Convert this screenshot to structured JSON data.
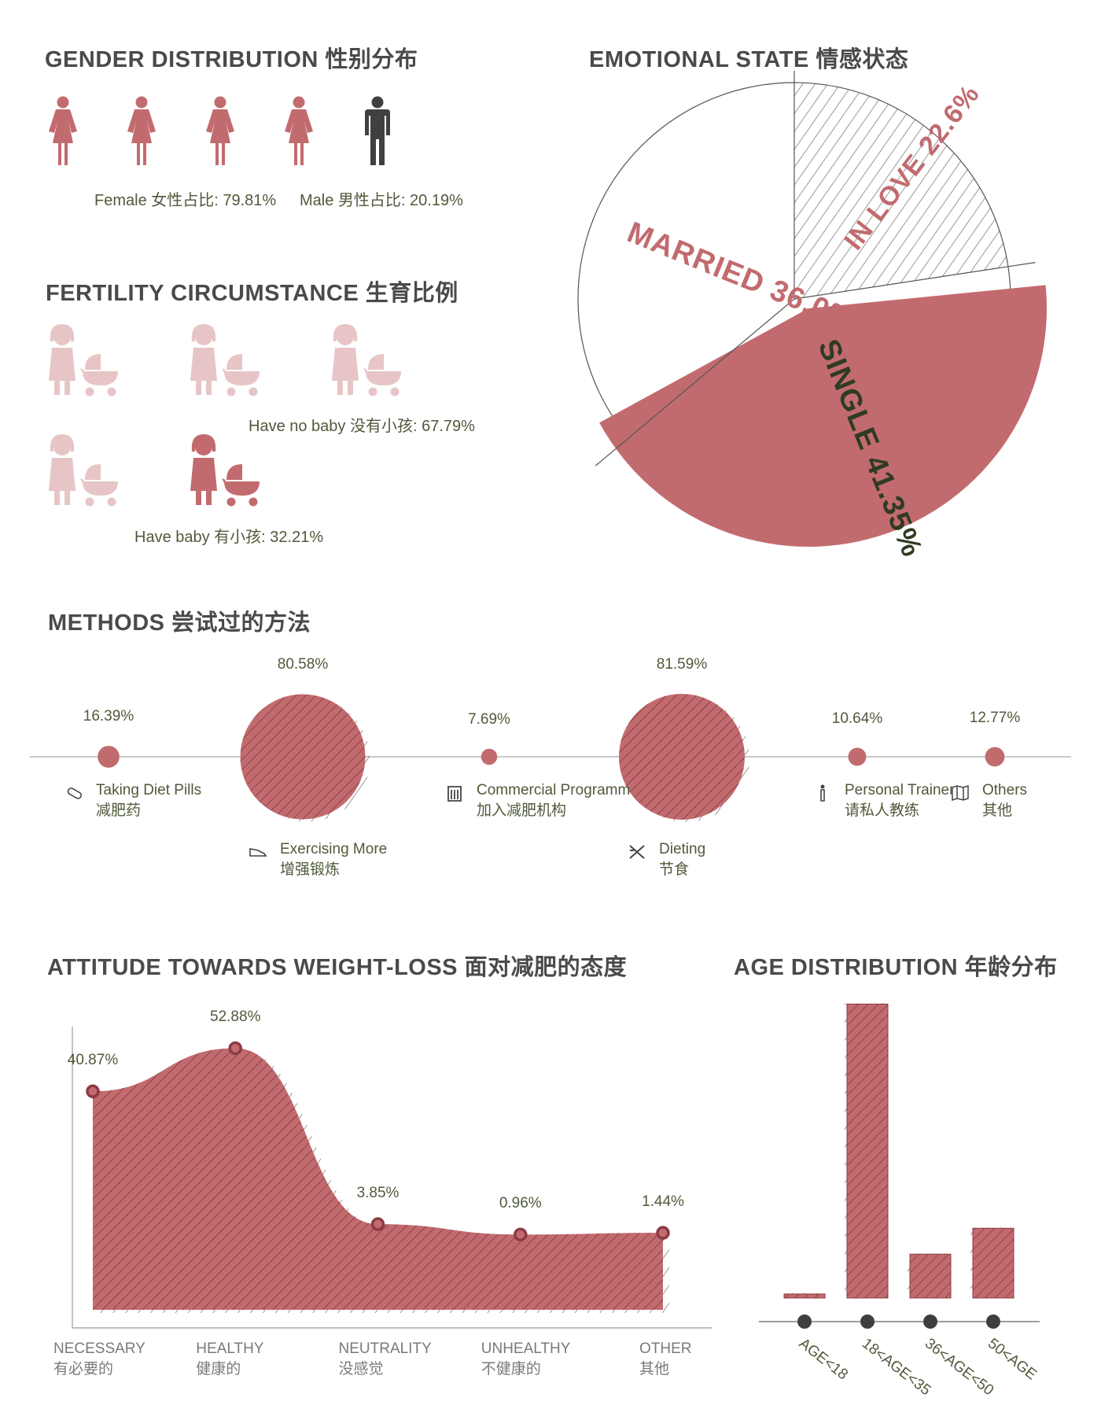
{
  "colors": {
    "rose": "#c26b6f",
    "rose_dark": "#8e3a44",
    "pale_rose": "#e7c5c6",
    "male_gray": "#404040",
    "olive_text": "#4f5a3a",
    "single_text": "#2f3b22"
  },
  "gender": {
    "title": "GENDER DISTRIBUTION 性别分布",
    "female_label": "Female 女性占比: 79.81%",
    "male_label": "Male 男性占比: 20.19%",
    "icons": [
      "female-icon",
      "female-icon",
      "female-icon",
      "female-icon",
      "male-icon"
    ]
  },
  "fertility": {
    "title": "FERTILITY CIRCUMSTANCE 生育比例",
    "no_baby_label": "Have no baby 没有小孩: 67.79%",
    "baby_label": "Have baby 有小孩: 32.21%",
    "icons": [
      "mother-stroller-icon"
    ]
  },
  "emotional": {
    "title": "EMOTIONAL STATE 情感状态",
    "chart_data": {
      "type": "pie",
      "slices": [
        {
          "label": "IN LOVE 22.6%",
          "value": 22.6
        },
        {
          "label": "MARRIED 36.0%",
          "value": 36.0
        },
        {
          "label": "SINGLE 41.35%",
          "value": 41.35
        }
      ]
    }
  },
  "methods": {
    "title": "METHODS 尝试过的方法",
    "chart_data": {
      "type": "bubble",
      "items": [
        {
          "name": "Taking Diet Pills",
          "name_cn": "减肥药",
          "value": 16.39,
          "value_label": "16.39%",
          "icon": "pill-icon"
        },
        {
          "name": "Exercising More",
          "name_cn": "增强锻炼",
          "value": 80.58,
          "value_label": "80.58%",
          "icon": "sneaker-icon"
        },
        {
          "name": "Commercial Programm",
          "name_cn": "加入减肥机构",
          "value": 7.69,
          "value_label": "7.69%",
          "icon": "building-icon"
        },
        {
          "name": "Dieting",
          "name_cn": "节食",
          "value": 81.59,
          "value_label": "81.59%",
          "icon": "cutlery-icon"
        },
        {
          "name": "Personal Trainer",
          "name_cn": "请私人教练",
          "value": 10.64,
          "value_label": "10.64%",
          "icon": "person-icon"
        },
        {
          "name": "Others",
          "name_cn": "其他",
          "value": 12.77,
          "value_label": "12.77%",
          "icon": "map-icon"
        }
      ]
    }
  },
  "attitude": {
    "title": "ATTITUDE TOWARDS WEIGHT-LOSS 面对减肥的态度",
    "chart_data": {
      "type": "area",
      "categories": [
        {
          "en": "NECESSARY",
          "cn": "有必要的"
        },
        {
          "en": "HEALTHY",
          "cn": "健康的"
        },
        {
          "en": "NEUTRALITY",
          "cn": "没感觉"
        },
        {
          "en": "UNHEALTHY",
          "cn": "不健康的"
        },
        {
          "en": "OTHER",
          "cn": "其他"
        }
      ],
      "values": [
        40.87,
        52.88,
        3.85,
        0.96,
        1.44
      ],
      "value_labels": [
        "40.87%",
        "52.88%",
        "3.85%",
        "0.96%",
        "1.44%"
      ],
      "ylim": [
        -20,
        60
      ]
    }
  },
  "age": {
    "title": "AGE DISTRIBUTION 年龄分布",
    "chart_data": {
      "type": "bar",
      "categories": [
        "AGE<18",
        "18<AGE<35",
        "36<AGE<50",
        "50<AGE"
      ],
      "values": [
        1.2,
        88.5,
        13.2,
        21.0
      ],
      "ylim": [
        0,
        90
      ]
    }
  }
}
